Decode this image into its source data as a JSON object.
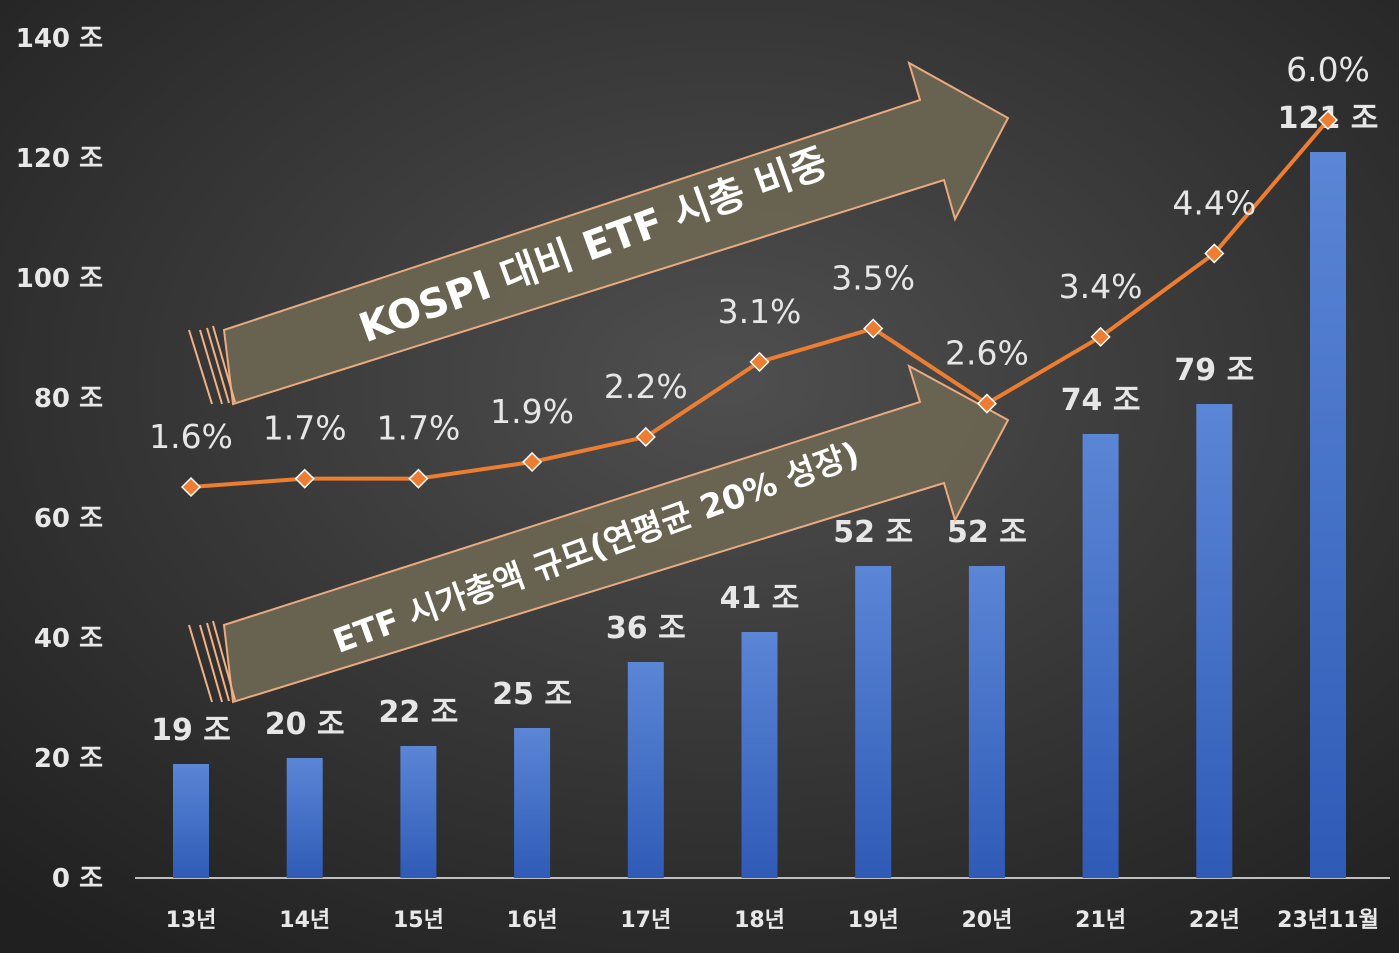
{
  "chart_data": {
    "type": "bar",
    "categories": [
      "13년",
      "14년",
      "15년",
      "16년",
      "17년",
      "18년",
      "19년",
      "20년",
      "21년",
      "22년",
      "23년11월"
    ],
    "series": [
      {
        "values": [
          19,
          20,
          22,
          25,
          36,
          41,
          52,
          52,
          74,
          79,
          121
        ],
        "value_labels": [
          "19 조",
          "20 조",
          "22 조",
          "25 조",
          "36 조",
          "41 조",
          "52 조",
          "52 조",
          "74 조",
          "79 조",
          "121 조"
        ],
        "type": "bar",
        "color": "#4472c4"
      },
      {
        "values": [
          1.6,
          1.7,
          1.7,
          1.9,
          2.2,
          3.1,
          3.5,
          2.6,
          3.4,
          4.4,
          6.0
        ],
        "value_labels": [
          "1.6%",
          "1.7%",
          "1.7%",
          "1.9%",
          "2.2%",
          "3.1%",
          "3.5%",
          "2.6%",
          "3.4%",
          "4.4%",
          "6.0%"
        ],
        "type": "line",
        "color": "#ed7d31"
      }
    ],
    "y_ticks": [
      "0 조",
      "20 조",
      "40 조",
      "60 조",
      "80 조",
      "100 조",
      "120 조",
      "140 조"
    ],
    "ylim": [
      0,
      140
    ],
    "annotations": [
      "KOSPI 대비 ETF 시총 비중",
      "ETF 시가총액 규모(연평균 20% 성장)"
    ],
    "grid": false,
    "legend": "none"
  },
  "colors": {
    "background": "#2b2b2b",
    "bar": "#4472c4",
    "line": "#ed7d31",
    "arrow_fill": "#6b6552",
    "arrow_stroke": "#f4b183"
  }
}
